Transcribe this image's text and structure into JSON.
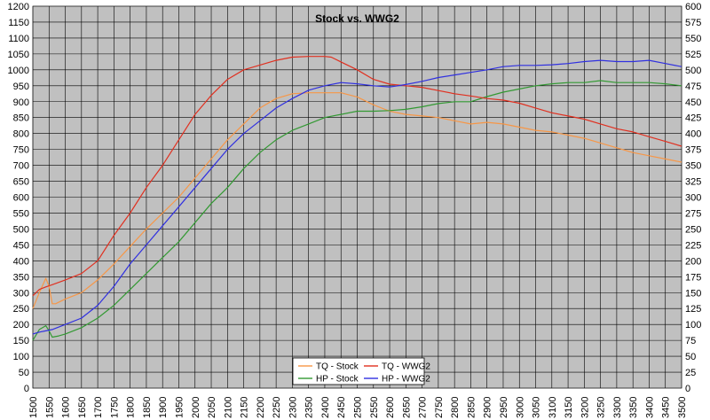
{
  "chart_data": {
    "type": "line",
    "title": "Stock vs. WWG2",
    "xlabel": "",
    "ylabel": "",
    "x_ticks": [
      1500,
      1550,
      1600,
      1650,
      1700,
      1750,
      1800,
      1850,
      1900,
      1950,
      2000,
      2050,
      2100,
      2150,
      2200,
      2250,
      2300,
      2350,
      2400,
      2450,
      2500,
      2550,
      2600,
      2650,
      2700,
      2750,
      2800,
      2850,
      2900,
      2950,
      3000,
      3050,
      3100,
      3150,
      3200,
      3250,
      3300,
      3350,
      3400,
      3450,
      3500
    ],
    "xlim": [
      1500,
      3500
    ],
    "ylim_left": [
      0,
      1200
    ],
    "ylim_right": [
      0,
      600
    ],
    "y_left_step": 50,
    "y_right_step": 25,
    "grid": true,
    "background": "#c0c0c0",
    "legend_position": "bottom-center",
    "series": [
      {
        "name": "TQ - Stock",
        "axis": "left",
        "color": "#f79646",
        "x": [
          1500,
          1520,
          1540,
          1550,
          1560,
          1570,
          1600,
          1650,
          1700,
          1750,
          1800,
          1850,
          1900,
          1950,
          2000,
          2050,
          2100,
          2150,
          2200,
          2250,
          2300,
          2350,
          2400,
          2450,
          2500,
          2550,
          2600,
          2650,
          2700,
          2750,
          2800,
          2850,
          2900,
          2950,
          3000,
          3050,
          3100,
          3150,
          3200,
          3250,
          3300,
          3350,
          3400,
          3450,
          3500
        ],
        "y": [
          250,
          300,
          345,
          320,
          265,
          265,
          280,
          300,
          340,
          390,
          445,
          500,
          550,
          600,
          660,
          720,
          780,
          830,
          880,
          910,
          925,
          928,
          928,
          928,
          915,
          890,
          870,
          860,
          855,
          850,
          840,
          830,
          835,
          830,
          820,
          810,
          805,
          795,
          785,
          770,
          755,
          740,
          730,
          720,
          710
        ]
      },
      {
        "name": "HP - Stock",
        "axis": "right",
        "color": "#339933",
        "x": [
          1500,
          1520,
          1540,
          1550,
          1560,
          1580,
          1600,
          1650,
          1700,
          1750,
          1800,
          1850,
          1900,
          1950,
          2000,
          2050,
          2100,
          2150,
          2200,
          2250,
          2300,
          2350,
          2400,
          2450,
          2500,
          2550,
          2600,
          2650,
          2700,
          2750,
          2800,
          2850,
          2900,
          2950,
          3000,
          3050,
          3100,
          3150,
          3200,
          3250,
          3300,
          3350,
          3400,
          3450,
          3500
        ],
        "y": [
          75,
          92,
          98,
          90,
          80,
          82,
          85,
          95,
          110,
          130,
          155,
          180,
          205,
          230,
          260,
          290,
          315,
          345,
          370,
          390,
          405,
          415,
          425,
          430,
          435,
          435,
          436,
          438,
          442,
          447,
          450,
          450,
          458,
          465,
          470,
          475,
          478,
          480,
          480,
          483,
          480,
          480,
          480,
          478,
          475
        ]
      },
      {
        "name": "TQ - WWG2",
        "axis": "left",
        "color": "#e03020",
        "x": [
          1500,
          1520,
          1540,
          1560,
          1600,
          1650,
          1700,
          1750,
          1800,
          1850,
          1900,
          1950,
          2000,
          2050,
          2100,
          2150,
          2200,
          2250,
          2300,
          2350,
          2400,
          2420,
          2450,
          2500,
          2550,
          2600,
          2650,
          2700,
          2750,
          2800,
          2850,
          2900,
          2950,
          3000,
          3050,
          3100,
          3150,
          3200,
          3250,
          3300,
          3350,
          3400,
          3450,
          3500
        ],
        "y": [
          290,
          310,
          318,
          325,
          340,
          360,
          400,
          480,
          550,
          630,
          700,
          780,
          860,
          920,
          970,
          1000,
          1015,
          1030,
          1040,
          1042,
          1042,
          1040,
          1025,
          1000,
          970,
          955,
          950,
          945,
          935,
          925,
          918,
          910,
          905,
          895,
          880,
          865,
          855,
          845,
          830,
          815,
          805,
          790,
          775,
          760
        ]
      },
      {
        "name": "HP - WWG2",
        "axis": "right",
        "color": "#3030e0",
        "x": [
          1500,
          1520,
          1540,
          1560,
          1600,
          1650,
          1700,
          1750,
          1800,
          1850,
          1900,
          1950,
          2000,
          2050,
          2100,
          2150,
          2200,
          2250,
          2300,
          2350,
          2400,
          2450,
          2500,
          2550,
          2600,
          2650,
          2700,
          2750,
          2800,
          2850,
          2900,
          2950,
          3000,
          3050,
          3100,
          3150,
          3200,
          3250,
          3300,
          3350,
          3400,
          3450,
          3500
        ],
        "y": [
          85,
          88,
          90,
          92,
          100,
          110,
          130,
          160,
          195,
          225,
          255,
          285,
          315,
          345,
          375,
          400,
          420,
          440,
          455,
          468,
          475,
          480,
          478,
          475,
          473,
          477,
          482,
          488,
          492,
          496,
          500,
          505,
          507,
          507,
          508,
          510,
          513,
          515,
          513,
          513,
          515,
          510,
          505
        ]
      }
    ]
  }
}
